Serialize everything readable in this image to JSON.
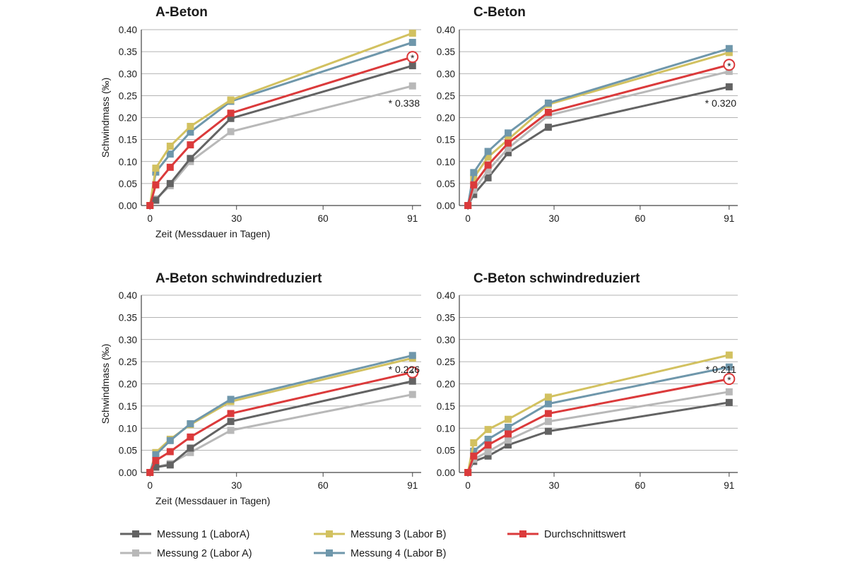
{
  "colors": {
    "Messung 1 (LaborA)": "#636363",
    "Messung 2 (Labor A)": "#b8b8b8",
    "Messung 3 (Labor B)": "#d2c160",
    "Messung 4 (Labor B)": "#6f97ab",
    "Durchschnittswert": "#db3a3b",
    "grid": "#9a9a9a",
    "axis": "#444444"
  },
  "legend": [
    "Messung 1 (LaborA)",
    "Messung 2 (Labor A)",
    "Messung 3 (Labor B)",
    "Messung 4 (Labor B)",
    "Durchschnittswert"
  ],
  "chart_data": [
    {
      "type": "line",
      "title": "A-Beton",
      "xlabel": "Zeit (Messdauer in Tagen)",
      "ylabel": "Schwindmass (‰)",
      "x": [
        0,
        2,
        7,
        14,
        28,
        91
      ],
      "x_ticks": [
        0,
        30,
        60,
        91
      ],
      "ylim": [
        0,
        0.4
      ],
      "y_ticks": [
        "0.00",
        "0.05",
        "0.10",
        "0.15",
        "0.20",
        "0.25",
        "0.30",
        "0.35",
        "0.40"
      ],
      "grid": true,
      "annotation": "* 0.338",
      "series": [
        {
          "name": "Messung 2 (Labor A)",
          "values": [
            0.0,
            0.015,
            0.045,
            0.1,
            0.168,
            0.272
          ]
        },
        {
          "name": "Messung 1 (LaborA)",
          "values": [
            0.0,
            0.012,
            0.05,
            0.107,
            0.198,
            0.318
          ]
        },
        {
          "name": "Messung 4 (Labor B)",
          "values": [
            0.0,
            0.076,
            0.117,
            0.167,
            0.237,
            0.371
          ]
        },
        {
          "name": "Messung 3 (Labor B)",
          "values": [
            0.0,
            0.085,
            0.135,
            0.18,
            0.24,
            0.392
          ]
        },
        {
          "name": "Durchschnittswert",
          "values": [
            0.0,
            0.047,
            0.087,
            0.138,
            0.21,
            0.338
          ]
        }
      ]
    },
    {
      "type": "line",
      "title": "C-Beton",
      "xlabel": "",
      "ylabel": "",
      "x": [
        0,
        2,
        7,
        14,
        28,
        91
      ],
      "x_ticks": [
        0,
        30,
        60,
        91
      ],
      "ylim": [
        0,
        0.4
      ],
      "y_ticks": [
        "0.00",
        "0.05",
        "0.10",
        "0.15",
        "0.20",
        "0.25",
        "0.30",
        "0.35",
        "0.40"
      ],
      "grid": true,
      "annotation": "* 0.320",
      "series": [
        {
          "name": "Messung 1 (LaborA)",
          "values": [
            0.0,
            0.025,
            0.063,
            0.12,
            0.178,
            0.27
          ]
        },
        {
          "name": "Messung 2 (Labor A)",
          "values": [
            0.0,
            0.035,
            0.08,
            0.13,
            0.205,
            0.305
          ]
        },
        {
          "name": "Messung 3 (Labor B)",
          "values": [
            0.0,
            0.063,
            0.11,
            0.15,
            0.23,
            0.348
          ]
        },
        {
          "name": "Messung 4 (Labor B)",
          "values": [
            0.0,
            0.075,
            0.123,
            0.165,
            0.233,
            0.357
          ]
        },
        {
          "name": "Durchschnittswert",
          "values": [
            0.0,
            0.047,
            0.092,
            0.142,
            0.212,
            0.32
          ]
        }
      ]
    },
    {
      "type": "line",
      "title": "A-Beton schwindreduziert",
      "xlabel": "Zeit (Messdauer in Tagen)",
      "ylabel": "Schwindmass (‰)",
      "x": [
        0,
        2,
        7,
        14,
        28,
        91
      ],
      "x_ticks": [
        0,
        30,
        60,
        91
      ],
      "ylim": [
        0,
        0.4
      ],
      "y_ticks": [
        "0.00",
        "0.05",
        "0.10",
        "0.15",
        "0.20",
        "0.25",
        "0.30",
        "0.35",
        "0.40"
      ],
      "grid": true,
      "annotation": "* 0.226",
      "series": [
        {
          "name": "Messung 2 (Labor A)",
          "values": [
            0.0,
            0.012,
            0.02,
            0.045,
            0.095,
            0.176
          ]
        },
        {
          "name": "Messung 1 (LaborA)",
          "values": [
            0.0,
            0.012,
            0.017,
            0.055,
            0.115,
            0.206
          ]
        },
        {
          "name": "Messung 3 (Labor B)",
          "values": [
            0.0,
            0.045,
            0.075,
            0.108,
            0.16,
            0.258
          ]
        },
        {
          "name": "Messung 4 (Labor B)",
          "values": [
            0.0,
            0.04,
            0.072,
            0.11,
            0.165,
            0.264
          ]
        },
        {
          "name": "Durchschnittswert",
          "values": [
            0.0,
            0.027,
            0.047,
            0.08,
            0.133,
            0.226
          ]
        }
      ]
    },
    {
      "type": "line",
      "title": "C-Beton schwindreduziert",
      "xlabel": "",
      "ylabel": "",
      "x": [
        0,
        2,
        7,
        14,
        28,
        91
      ],
      "x_ticks": [
        0,
        30,
        60,
        91
      ],
      "ylim": [
        0,
        0.4
      ],
      "y_ticks": [
        "0.00",
        "0.05",
        "0.10",
        "0.15",
        "0.20",
        "0.25",
        "0.30",
        "0.35",
        "0.40"
      ],
      "grid": true,
      "annotation": "* 0.211",
      "series": [
        {
          "name": "Messung 1 (LaborA)",
          "values": [
            0.0,
            0.025,
            0.037,
            0.062,
            0.093,
            0.158
          ]
        },
        {
          "name": "Messung 2 (Labor A)",
          "values": [
            0.0,
            0.03,
            0.047,
            0.073,
            0.115,
            0.182
          ]
        },
        {
          "name": "Messung 4 (Labor B)",
          "values": [
            0.0,
            0.048,
            0.075,
            0.102,
            0.155,
            0.238
          ]
        },
        {
          "name": "Messung 3 (Labor B)",
          "values": [
            0.0,
            0.067,
            0.097,
            0.12,
            0.17,
            0.265
          ]
        },
        {
          "name": "Durchschnittswert",
          "values": [
            0.0,
            0.037,
            0.062,
            0.087,
            0.133,
            0.211
          ]
        }
      ]
    }
  ]
}
